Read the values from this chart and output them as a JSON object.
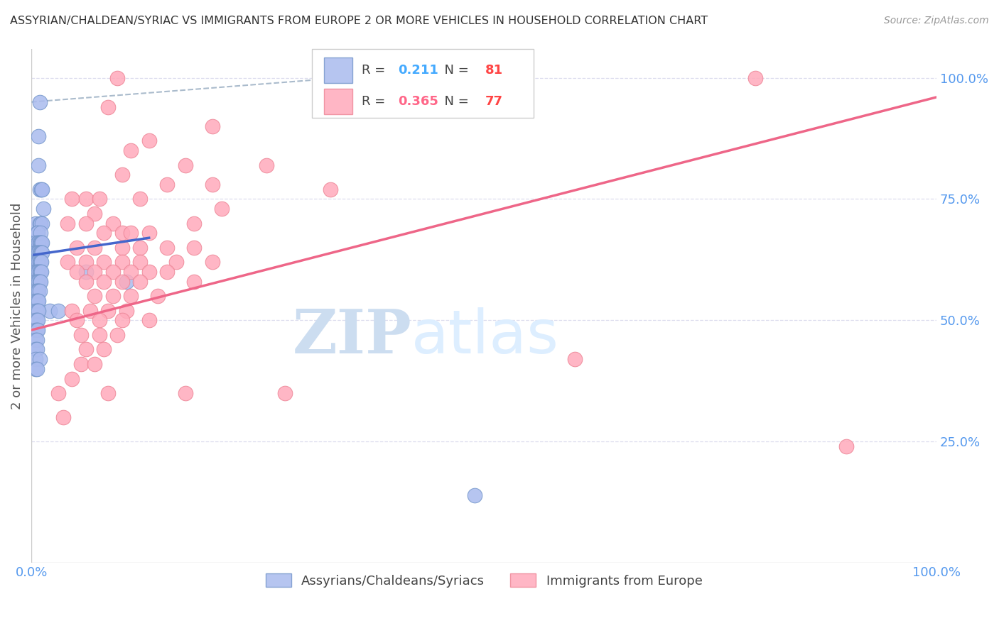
{
  "title": "ASSYRIAN/CHALDEAN/SYRIAC VS IMMIGRANTS FROM EUROPE 2 OR MORE VEHICLES IN HOUSEHOLD CORRELATION CHART",
  "source": "Source: ZipAtlas.com",
  "ylabel": "2 or more Vehicles in Household",
  "legend_blue_r": "0.211",
  "legend_blue_n": "81",
  "legend_pink_r": "0.365",
  "legend_pink_n": "77",
  "legend_blue_label": "Assyrians/Chaldeans/Syriacs",
  "legend_pink_label": "Immigrants from Europe",
  "watermark_zip": "ZIP",
  "watermark_atlas": "atlas",
  "blue_color": "#aabbee",
  "blue_edge_color": "#7799cc",
  "pink_color": "#ffaabb",
  "pink_edge_color": "#ee8899",
  "blue_line_color": "#4466cc",
  "pink_line_color": "#ee6688",
  "dashed_line_color": "#aabbcc",
  "background_color": "#ffffff",
  "grid_color": "#ddddee",
  "axis_label_color": "#5599ee",
  "title_color": "#333333",
  "source_color": "#999999",
  "ylabel_color": "#555555",
  "blue_scatter": [
    [
      0.8,
      88
    ],
    [
      0.8,
      82
    ],
    [
      0.9,
      95
    ],
    [
      0.9,
      77
    ],
    [
      1.1,
      77
    ],
    [
      1.2,
      77
    ],
    [
      0.5,
      70
    ],
    [
      1.3,
      73
    ],
    [
      0.9,
      70
    ],
    [
      1.0,
      70
    ],
    [
      1.2,
      70
    ],
    [
      0.6,
      68
    ],
    [
      0.7,
      68
    ],
    [
      1.0,
      68
    ],
    [
      0.5,
      66
    ],
    [
      0.7,
      66
    ],
    [
      0.8,
      66
    ],
    [
      0.9,
      66
    ],
    [
      1.0,
      66
    ],
    [
      1.1,
      66
    ],
    [
      1.2,
      66
    ],
    [
      0.5,
      64
    ],
    [
      0.6,
      64
    ],
    [
      0.7,
      64
    ],
    [
      0.8,
      64
    ],
    [
      0.9,
      64
    ],
    [
      1.0,
      64
    ],
    [
      1.1,
      64
    ],
    [
      1.2,
      64
    ],
    [
      0.5,
      62
    ],
    [
      0.6,
      62
    ],
    [
      0.7,
      62
    ],
    [
      0.8,
      62
    ],
    [
      0.9,
      62
    ],
    [
      1.0,
      62
    ],
    [
      1.1,
      62
    ],
    [
      0.5,
      60
    ],
    [
      0.6,
      60
    ],
    [
      0.7,
      60
    ],
    [
      0.8,
      60
    ],
    [
      0.9,
      60
    ],
    [
      1.0,
      60
    ],
    [
      1.1,
      60
    ],
    [
      6.0,
      60
    ],
    [
      0.5,
      58
    ],
    [
      0.6,
      58
    ],
    [
      0.7,
      58
    ],
    [
      0.8,
      58
    ],
    [
      0.9,
      58
    ],
    [
      1.0,
      58
    ],
    [
      10.5,
      58
    ],
    [
      0.5,
      56
    ],
    [
      0.6,
      56
    ],
    [
      0.7,
      56
    ],
    [
      0.8,
      56
    ],
    [
      0.9,
      56
    ],
    [
      0.5,
      54
    ],
    [
      0.6,
      54
    ],
    [
      0.7,
      54
    ],
    [
      0.8,
      54
    ],
    [
      2.0,
      52
    ],
    [
      3.0,
      52
    ],
    [
      0.5,
      52
    ],
    [
      0.6,
      52
    ],
    [
      0.7,
      52
    ],
    [
      0.8,
      52
    ],
    [
      0.5,
      50
    ],
    [
      0.6,
      50
    ],
    [
      0.7,
      50
    ],
    [
      0.5,
      48
    ],
    [
      0.6,
      48
    ],
    [
      0.7,
      48
    ],
    [
      0.5,
      46
    ],
    [
      0.6,
      46
    ],
    [
      0.5,
      44
    ],
    [
      0.6,
      44
    ],
    [
      0.5,
      42
    ],
    [
      0.9,
      42
    ],
    [
      0.5,
      40
    ],
    [
      0.6,
      40
    ],
    [
      49.0,
      14
    ]
  ],
  "pink_scatter": [
    [
      9.5,
      100
    ],
    [
      80.0,
      100
    ],
    [
      8.5,
      94
    ],
    [
      20.0,
      90
    ],
    [
      13.0,
      87
    ],
    [
      11.0,
      85
    ],
    [
      17.0,
      82
    ],
    [
      26.0,
      82
    ],
    [
      10.0,
      80
    ],
    [
      15.0,
      78
    ],
    [
      20.0,
      78
    ],
    [
      33.0,
      77
    ],
    [
      4.5,
      75
    ],
    [
      6.0,
      75
    ],
    [
      7.5,
      75
    ],
    [
      12.0,
      75
    ],
    [
      21.0,
      73
    ],
    [
      7.0,
      72
    ],
    [
      4.0,
      70
    ],
    [
      6.0,
      70
    ],
    [
      9.0,
      70
    ],
    [
      18.0,
      70
    ],
    [
      8.0,
      68
    ],
    [
      10.0,
      68
    ],
    [
      11.0,
      68
    ],
    [
      13.0,
      68
    ],
    [
      5.0,
      65
    ],
    [
      7.0,
      65
    ],
    [
      10.0,
      65
    ],
    [
      12.0,
      65
    ],
    [
      15.0,
      65
    ],
    [
      18.0,
      65
    ],
    [
      4.0,
      62
    ],
    [
      6.0,
      62
    ],
    [
      8.0,
      62
    ],
    [
      10.0,
      62
    ],
    [
      12.0,
      62
    ],
    [
      16.0,
      62
    ],
    [
      20.0,
      62
    ],
    [
      5.0,
      60
    ],
    [
      7.0,
      60
    ],
    [
      9.0,
      60
    ],
    [
      11.0,
      60
    ],
    [
      13.0,
      60
    ],
    [
      15.0,
      60
    ],
    [
      6.0,
      58
    ],
    [
      8.0,
      58
    ],
    [
      10.0,
      58
    ],
    [
      12.0,
      58
    ],
    [
      18.0,
      58
    ],
    [
      7.0,
      55
    ],
    [
      9.0,
      55
    ],
    [
      11.0,
      55
    ],
    [
      14.0,
      55
    ],
    [
      4.5,
      52
    ],
    [
      6.5,
      52
    ],
    [
      8.5,
      52
    ],
    [
      10.5,
      52
    ],
    [
      5.0,
      50
    ],
    [
      7.5,
      50
    ],
    [
      10.0,
      50
    ],
    [
      13.0,
      50
    ],
    [
      5.5,
      47
    ],
    [
      7.5,
      47
    ],
    [
      9.5,
      47
    ],
    [
      6.0,
      44
    ],
    [
      8.0,
      44
    ],
    [
      5.5,
      41
    ],
    [
      7.0,
      41
    ],
    [
      4.5,
      38
    ],
    [
      3.0,
      35
    ],
    [
      8.5,
      35
    ],
    [
      17.0,
      35
    ],
    [
      28.0,
      35
    ],
    [
      3.5,
      30
    ],
    [
      60.0,
      42
    ],
    [
      90.0,
      24
    ]
  ],
  "blue_line_x": [
    0.3,
    13.0
  ],
  "blue_line_y": [
    63.5,
    67.0
  ],
  "pink_line_x": [
    0.0,
    100.0
  ],
  "pink_line_y": [
    48.0,
    96.0
  ],
  "dashed_line_x": [
    0.0,
    55.0
  ],
  "dashed_line_y": [
    95.0,
    103.0
  ],
  "xlim": [
    0,
    100
  ],
  "ylim": [
    0,
    106
  ],
  "xtick_vals": [
    0,
    20,
    40,
    60,
    80,
    100
  ],
  "xtick_labels": [
    "0.0%",
    "",
    "",
    "",
    "",
    "100.0%"
  ],
  "ytick_vals": [
    25,
    50,
    75,
    100
  ],
  "ytick_labels": [
    "25.0%",
    "50.0%",
    "75.0%",
    "100.0%"
  ]
}
